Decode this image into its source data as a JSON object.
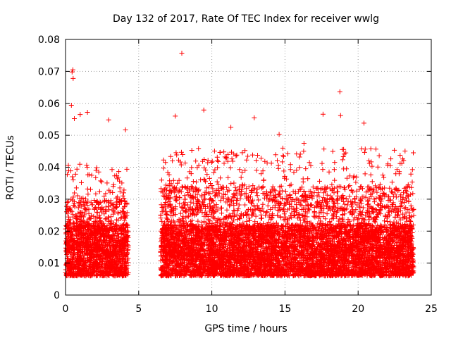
{
  "chart_data": {
    "type": "scatter",
    "title": "Day 132 of 2017, Rate Of TEC Index for receiver wwlg",
    "xlabel": "GPS time / hours",
    "ylabel": "ROTI / TECUs",
    "xlim": [
      0,
      25
    ],
    "ylim": [
      0,
      0.08
    ],
    "x_ticks": [
      0,
      5,
      10,
      15,
      20,
      25
    ],
    "x_tick_labels": [
      "0",
      "5",
      "10",
      "15",
      "20",
      "25"
    ],
    "y_ticks": [
      0,
      0.01,
      0.02,
      0.03,
      0.04,
      0.05,
      0.06,
      0.07,
      0.08
    ],
    "y_tick_labels": [
      "0",
      "0.01",
      "0.02",
      "0.03",
      "0.04",
      "0.05",
      "0.06",
      "0.07",
      "0.08"
    ],
    "grid": true,
    "marker": "plus",
    "color": "#ff0000",
    "series": [
      {
        "name": "ROTI",
        "highlights": [
          {
            "x": 7.95,
            "y": 0.0757
          },
          {
            "x": 0.5,
            "y": 0.0705
          },
          {
            "x": 0.45,
            "y": 0.0698
          },
          {
            "x": 0.52,
            "y": 0.0678
          },
          {
            "x": 18.75,
            "y": 0.0636
          },
          {
            "x": 0.4,
            "y": 0.0594
          },
          {
            "x": 9.45,
            "y": 0.0579
          },
          {
            "x": 1.5,
            "y": 0.0572
          },
          {
            "x": 17.6,
            "y": 0.0566
          },
          {
            "x": 7.5,
            "y": 0.056
          },
          {
            "x": 1.0,
            "y": 0.0565
          },
          {
            "x": 18.8,
            "y": 0.0562
          },
          {
            "x": 12.9,
            "y": 0.0555
          },
          {
            "x": 0.6,
            "y": 0.0552
          },
          {
            "x": 2.95,
            "y": 0.0548
          },
          {
            "x": 20.4,
            "y": 0.0538
          },
          {
            "x": 4.1,
            "y": 0.0517
          },
          {
            "x": 11.3,
            "y": 0.0525
          },
          {
            "x": 14.6,
            "y": 0.0503
          },
          {
            "x": 16.3,
            "y": 0.0475
          }
        ],
        "bands": [
          {
            "x_from": 0.0,
            "x_to": 4.3,
            "y_floor": 0.002,
            "y_typical": 0.024,
            "y_peak": 0.045
          },
          {
            "x_from": 6.5,
            "y_floor": 0.002,
            "x_to": 23.8,
            "y_typical": 0.028,
            "y_peak": 0.05
          }
        ],
        "data_gap": [
          4.3,
          6.5
        ]
      }
    ]
  }
}
